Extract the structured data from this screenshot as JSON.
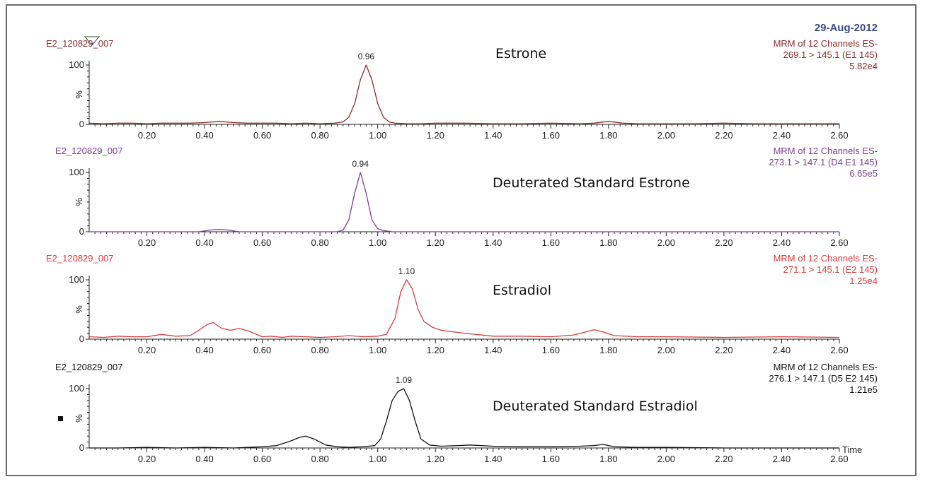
{
  "date": "29-Aug-2012",
  "colors": {
    "estrone": "#8b2c2c",
    "estrone_std": "#7a3e93",
    "estradiol": "#d83a3a",
    "estradiol_std": "#111111",
    "date": "#3a4a8a"
  },
  "chart_data": [
    {
      "type": "line",
      "sample": "E2_120829_007",
      "compound": "Estrone",
      "channel_title": "MRM of 12 Channels ES-",
      "transition": "269.1 > 145.1 (E1 145)",
      "intensity": "5.82e4",
      "peak_label": "0.96",
      "xlim": [
        0.0,
        2.6
      ],
      "ylim": [
        0,
        100
      ],
      "xticks": [
        "0.20",
        "0.40",
        "0.60",
        "0.80",
        "1.00",
        "1.20",
        "1.40",
        "1.60",
        "1.80",
        "2.00",
        "2.20",
        "2.40",
        "2.60"
      ],
      "yticks": [
        "0",
        "100"
      ],
      "ylabel": "%",
      "color_key": "estrone",
      "x": [
        0.0,
        0.05,
        0.1,
        0.15,
        0.2,
        0.25,
        0.3,
        0.35,
        0.4,
        0.45,
        0.5,
        0.55,
        0.6,
        0.65,
        0.7,
        0.75,
        0.8,
        0.85,
        0.88,
        0.9,
        0.92,
        0.94,
        0.96,
        0.98,
        1.0,
        1.02,
        1.04,
        1.06,
        1.1,
        1.15,
        1.2,
        1.3,
        1.4,
        1.5,
        1.6,
        1.7,
        1.75,
        1.8,
        1.85,
        1.9,
        2.0,
        2.1,
        2.2,
        2.3,
        2.4,
        2.5,
        2.6
      ],
      "y": [
        2,
        1,
        2,
        2,
        1,
        2,
        2,
        2,
        3,
        5,
        3,
        2,
        2,
        2,
        1,
        2,
        1,
        2,
        4,
        12,
        35,
        75,
        100,
        75,
        35,
        12,
        4,
        2,
        1,
        1,
        2,
        2,
        1,
        1,
        2,
        1,
        2,
        5,
        2,
        1,
        1,
        1,
        2,
        1,
        1,
        1,
        1
      ]
    },
    {
      "type": "line",
      "sample": "E2_120829_007",
      "compound": "Deuterated Standard Estrone",
      "channel_title": "MRM of 12 Channels ES-",
      "transition": "273.1 > 147.1 (D4 E1 145)",
      "intensity": "6.65e5",
      "peak_label": "0.94",
      "xlim": [
        0.0,
        2.6
      ],
      "ylim": [
        0,
        100
      ],
      "xticks": [
        "0.20",
        "0.40",
        "0.60",
        "0.80",
        "1.00",
        "1.20",
        "1.40",
        "1.60",
        "1.80",
        "2.00",
        "2.20",
        "2.40",
        "2.60"
      ],
      "yticks": [
        "0",
        "100"
      ],
      "ylabel": "%",
      "color_key": "estrone_std",
      "x": [
        0.0,
        0.1,
        0.2,
        0.3,
        0.38,
        0.42,
        0.45,
        0.48,
        0.52,
        0.6,
        0.7,
        0.8,
        0.86,
        0.88,
        0.9,
        0.92,
        0.94,
        0.96,
        0.98,
        1.0,
        1.02,
        1.05,
        1.1,
        1.2,
        1.4,
        1.6,
        1.8,
        2.0,
        2.2,
        2.4,
        2.6
      ],
      "y": [
        0,
        0,
        0,
        0,
        0,
        3,
        4,
        3,
        0,
        0,
        0,
        0,
        0,
        3,
        20,
        65,
        100,
        65,
        20,
        5,
        2,
        0,
        0,
        0,
        0,
        0,
        0,
        0,
        0,
        0,
        0
      ]
    },
    {
      "type": "line",
      "sample": "E2_120829_007",
      "compound": "Estradiol",
      "channel_title": "MRM of 12 Channels ES-",
      "transition": "271.1 > 145.1 (E2 145)",
      "intensity": "1.25e4",
      "peak_label": "1.10",
      "xlim": [
        0.0,
        2.6
      ],
      "ylim": [
        0,
        100
      ],
      "xticks": [
        "0.20",
        "0.40",
        "0.60",
        "0.80",
        "1.00",
        "1.20",
        "1.40",
        "1.60",
        "1.80",
        "2.00",
        "2.20",
        "2.40",
        "2.60"
      ],
      "yticks": [
        "0",
        "100"
      ],
      "ylabel": "%",
      "color_key": "estradiol",
      "x": [
        0.0,
        0.05,
        0.1,
        0.15,
        0.2,
        0.25,
        0.3,
        0.35,
        0.38,
        0.41,
        0.43,
        0.46,
        0.49,
        0.52,
        0.55,
        0.6,
        0.63,
        0.67,
        0.7,
        0.75,
        0.8,
        0.85,
        0.9,
        0.95,
        1.0,
        1.03,
        1.06,
        1.08,
        1.1,
        1.12,
        1.14,
        1.16,
        1.19,
        1.22,
        1.25,
        1.3,
        1.4,
        1.5,
        1.6,
        1.68,
        1.72,
        1.75,
        1.78,
        1.82,
        1.9,
        2.0,
        2.2,
        2.4,
        2.6
      ],
      "y": [
        4,
        3,
        5,
        4,
        4,
        8,
        5,
        6,
        15,
        25,
        28,
        18,
        15,
        18,
        14,
        4,
        5,
        3,
        5,
        4,
        3,
        4,
        6,
        4,
        5,
        8,
        35,
        80,
        100,
        85,
        50,
        30,
        20,
        15,
        13,
        10,
        5,
        5,
        4,
        7,
        12,
        16,
        12,
        6,
        4,
        4,
        3,
        4,
        3
      ]
    },
    {
      "type": "line",
      "sample": "E2_120829_007",
      "compound": "Deuterated Standard Estradiol",
      "channel_title": "MRM of 12 Channels ES-",
      "transition": "276.1 > 147.1 (D5 E2 145)",
      "intensity": "1.21e5",
      "peak_label": "1.09",
      "xlim": [
        0.0,
        2.6
      ],
      "ylim": [
        0,
        100
      ],
      "xticks": [
        "0.20",
        "0.40",
        "0.60",
        "0.80",
        "1.00",
        "1.20",
        "1.40",
        "1.60",
        "1.80",
        "2.00",
        "2.20",
        "2.40",
        "2.60"
      ],
      "yticks": [
        "0",
        "100"
      ],
      "xlabel": "Time",
      "ylabel": "%",
      "color_key": "estradiol_std",
      "x": [
        0.0,
        0.1,
        0.2,
        0.3,
        0.4,
        0.5,
        0.6,
        0.65,
        0.7,
        0.73,
        0.75,
        0.78,
        0.82,
        0.86,
        0.9,
        0.95,
        0.99,
        1.01,
        1.03,
        1.05,
        1.07,
        1.09,
        1.11,
        1.13,
        1.15,
        1.18,
        1.22,
        1.28,
        1.32,
        1.4,
        1.5,
        1.6,
        1.7,
        1.75,
        1.78,
        1.82,
        1.9,
        2.0,
        2.2,
        2.4,
        2.6
      ],
      "y": [
        0,
        0,
        1,
        0,
        1,
        0,
        2,
        4,
        12,
        18,
        20,
        15,
        5,
        2,
        1,
        2,
        4,
        15,
        45,
        80,
        95,
        100,
        80,
        45,
        15,
        5,
        3,
        4,
        5,
        3,
        2,
        2,
        3,
        4,
        6,
        2,
        1,
        1,
        0,
        0,
        0
      ]
    }
  ]
}
